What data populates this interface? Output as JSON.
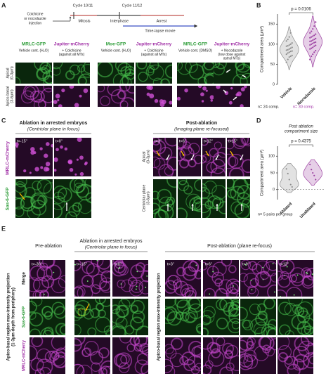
{
  "panel_a": {
    "letter": "A",
    "timeline": {
      "cycle_1": "Cycle 10/11",
      "cycle_2": "Cycle 11/12",
      "injection": [
        "Colchicine",
        "or nocodazole",
        "injection"
      ],
      "mitosis": "Mitosis",
      "interphase": "Interphase",
      "arrest": "Arrest",
      "movie": "Time-lapse movie"
    },
    "groups": [
      {
        "green": "MRLC-GFP",
        "magenta": "Jupiter-mCherry",
        "conditions": [
          [
            "Vehicle cont. (H₂O)"
          ],
          [
            "+ Colchicine",
            "(against all MTs)"
          ]
        ]
      },
      {
        "green": "Moe-GFP",
        "magenta": "Jupiter-mCherry",
        "conditions": [
          [
            "Vehicle cont. (H₂O)"
          ],
          [
            "+ Colchicine",
            "(against all MTs)"
          ]
        ]
      },
      {
        "green": "MRLC-GFP",
        "magenta": "Jupiter-mCherry",
        "conditions": [
          [
            "Vehicle cont. (DMSO)"
          ],
          [
            "+ Nocodazole",
            "(low dose against",
            "astral MTs)"
          ]
        ]
      }
    ],
    "rows": [
      [
        "Apical",
        "(0-3μm)"
      ],
      [
        "Apico-basal",
        "(3-6μm)"
      ]
    ]
  },
  "chart_data": [
    {
      "type": "violin",
      "letter": "B",
      "ylabel": "Compartment area (μm²)",
      "categories": [
        "Vehicle",
        "Nocodazole"
      ],
      "colors": [
        "#8c8c8c",
        "#9b3fa0"
      ],
      "values": [
        [
          55,
          62,
          68,
          70,
          72,
          75,
          78,
          80,
          82,
          83,
          85,
          86,
          88,
          90,
          92,
          95,
          96,
          98,
          100,
          103,
          108,
          112,
          118,
          128
        ],
        [
          62,
          70,
          75,
          80,
          84,
          88,
          90,
          92,
          95,
          97,
          98,
          100,
          102,
          104,
          105,
          107,
          108,
          110,
          112,
          114,
          116,
          118,
          120,
          122,
          125,
          128,
          132,
          138,
          145,
          155
        ]
      ],
      "ylim": [
        0,
        175
      ],
      "yticks": [
        0,
        50,
        100,
        150
      ],
      "annotation": "p = 0.0106",
      "notes": [
        "n= 24 comp.",
        "n= 30 comp."
      ]
    },
    {
      "type": "violin",
      "letter": "D",
      "title": [
        "Post ablation",
        "compartment size"
      ],
      "ylabel": "Compartment area (μm²)",
      "categories": [
        "Ablated",
        "Unablated"
      ],
      "colors": [
        "#8c8c8c",
        "#9b3fa0"
      ],
      "values": [
        [
          62,
          48,
          30,
          15,
          8
        ],
        [
          75,
          60,
          50,
          42,
          30
        ]
      ],
      "ylim": [
        -30,
        130
      ],
      "yticks": [
        0,
        50,
        100
      ],
      "annotation": "p = 0.4375",
      "zero_line": true,
      "notes": [
        "n= 5 pairs per group"
      ]
    }
  ],
  "panel_c": {
    "letter": "C",
    "ablation": "Ablation in arrested embryos",
    "ablation_sub": "(Centriolar plane in focus)",
    "post": "Post-ablation",
    "post_sub": "(Imaging plane re-focused)",
    "times": [
      "t=-15\"",
      "t=0\"",
      "t=3\"",
      "t=6\"",
      "t=12\"",
      "t=15\""
    ],
    "channels": [
      "MRLC-mCherry",
      "Sas-6-GFP"
    ],
    "planes": [
      [
        "Apical",
        "(0-3μm)"
      ],
      [
        "Centriolar plane",
        "(3-6μm)"
      ]
    ]
  },
  "panel_e": {
    "letter": "E",
    "pre": "Pre-ablation",
    "ablation": "Ablation in arrested embryos",
    "ablation_sub": "(Centriolar plane in focus)",
    "post": "Post-ablation (plane re-focus)",
    "times": [
      "t=-30\"",
      "t=-15\"",
      "t=0\"",
      "t=3\"",
      "t=6\"",
      "t=9\"",
      "t=12\""
    ],
    "rows": [
      "Merge",
      "Sas-6-GFP",
      "MRLC-mCherry"
    ],
    "side_label": [
      "Apico-basal region max-intensity projection",
      "(1-3μm depth from periphery)"
    ],
    "post_side_label": "Apico-basal region max-intensity projection"
  }
}
